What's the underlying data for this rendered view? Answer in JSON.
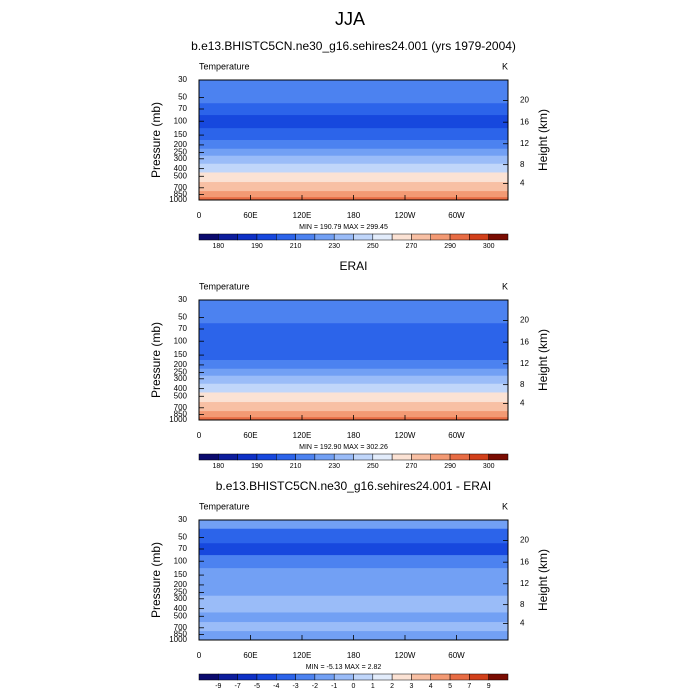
{
  "title": "JJA",
  "chart_data": [
    {
      "type": "contour",
      "title": "b.e13.BHISTC5CN.ne30_g16.sehires24.001 (yrs 1979-2004)",
      "variable": "Temperature",
      "units": "K",
      "ylabel": "Pressure (mb)",
      "y2label": "Height (km)",
      "stats": "MIN = 190.79  MAX = 299.45",
      "xlim": [
        0,
        360
      ],
      "xticks": [
        0,
        {
          "value": 60,
          "label": "60E"
        },
        {
          "value": 120,
          "label": "120E"
        },
        180,
        {
          "value": 240,
          "label": "120W"
        },
        {
          "value": 300,
          "label": "60W"
        }
      ],
      "ylim": [
        1000,
        30
      ],
      "ylog": true,
      "yticks": [
        30,
        50,
        70,
        100,
        150,
        200,
        250,
        300,
        400,
        500,
        700,
        850,
        1000
      ],
      "y2ticks": [
        4,
        8,
        12,
        16,
        20
      ],
      "profile": {
        "pressure": [
          30,
          50,
          70,
          100,
          150,
          200,
          250,
          300,
          400,
          500,
          700,
          850,
          1000
        ],
        "values": [
          218,
          212,
          205,
          198,
          208,
          218,
          226,
          234,
          248,
          260,
          276,
          286,
          293
        ]
      },
      "colorbar": {
        "levels": [
          180,
          185,
          190,
          200,
          210,
          220,
          230,
          240,
          250,
          260,
          270,
          280,
          290,
          295,
          300
        ],
        "label_every": 2,
        "colors": [
          "#0a0a6e",
          "#0c1c9c",
          "#0e30c6",
          "#1748de",
          "#2c64ea",
          "#4c82f0",
          "#72a0f4",
          "#9abcf8",
          "#c0d6fa",
          "#e2ecfb",
          "#fbe2d4",
          "#f8c0a4",
          "#f39a74",
          "#e86c44",
          "#d2401a",
          "#7a0c02"
        ]
      }
    },
    {
      "type": "contour",
      "title": "ERAI",
      "variable": "Temperature",
      "units": "K",
      "ylabel": "Pressure (mb)",
      "y2label": "Height (km)",
      "stats": "MIN = 192.90  MAX = 302.26",
      "xlim": [
        0,
        360
      ],
      "xticks": [
        0,
        {
          "value": 60,
          "label": "60E"
        },
        {
          "value": 120,
          "label": "120E"
        },
        180,
        {
          "value": 240,
          "label": "120W"
        },
        {
          "value": 300,
          "label": "60W"
        }
      ],
      "ylim": [
        1000,
        30
      ],
      "ylog": true,
      "yticks": [
        30,
        50,
        70,
        100,
        150,
        200,
        250,
        300,
        400,
        500,
        700,
        850,
        1000
      ],
      "y2ticks": [
        4,
        8,
        12,
        16,
        20
      ],
      "profile": {
        "pressure": [
          30,
          50,
          70,
          100,
          150,
          200,
          250,
          300,
          400,
          500,
          700,
          850,
          1000
        ],
        "values": [
          219,
          214,
          208,
          201,
          209,
          218,
          226,
          235,
          249,
          261,
          277,
          287,
          294
        ]
      },
      "colorbar": {
        "levels": [
          180,
          185,
          190,
          200,
          210,
          220,
          230,
          240,
          250,
          260,
          270,
          280,
          290,
          295,
          300
        ],
        "label_every": 2,
        "colors": [
          "#0a0a6e",
          "#0c1c9c",
          "#0e30c6",
          "#1748de",
          "#2c64ea",
          "#4c82f0",
          "#72a0f4",
          "#9abcf8",
          "#c0d6fa",
          "#e2ecfb",
          "#fbe2d4",
          "#f8c0a4",
          "#f39a74",
          "#e86c44",
          "#d2401a",
          "#7a0c02"
        ]
      }
    },
    {
      "type": "contour",
      "title": "b.e13.BHISTC5CN.ne30_g16.sehires24.001 - ERAI",
      "variable": "Temperature",
      "units": "K",
      "ylabel": "Pressure (mb)",
      "y2label": "Height (km)",
      "stats": "MIN =  -5.13  MAX =   2.82",
      "xlim": [
        0,
        360
      ],
      "xticks": [
        0,
        {
          "value": 60,
          "label": "60E"
        },
        {
          "value": 120,
          "label": "120E"
        },
        180,
        {
          "value": 240,
          "label": "120W"
        },
        {
          "value": 300,
          "label": "60W"
        }
      ],
      "ylim": [
        1000,
        30
      ],
      "ylog": true,
      "yticks": [
        30,
        50,
        70,
        100,
        150,
        200,
        250,
        300,
        400,
        500,
        700,
        850,
        1000
      ],
      "y2ticks": [
        4,
        8,
        12,
        16,
        20
      ],
      "profile": {
        "pressure": [
          30,
          50,
          70,
          100,
          150,
          200,
          250,
          300,
          400,
          500,
          700,
          850,
          1000
        ],
        "values": [
          -1.5,
          -3.5,
          -4.5,
          -2.5,
          -1.5,
          -1.5,
          -1.2,
          -0.8,
          -0.5,
          -1.2,
          -0.5,
          -1.2,
          -1.2
        ]
      },
      "colorbar": {
        "levels": [
          -9,
          -7,
          -5,
          -4,
          -3,
          -2,
          -1,
          0,
          1,
          2,
          3,
          4,
          5,
          7,
          9
        ],
        "label_every": 1,
        "colors": [
          "#0a0a6e",
          "#0c1c9c",
          "#0e30c6",
          "#1748de",
          "#2c64ea",
          "#4c82f0",
          "#72a0f4",
          "#9abcf8",
          "#c0d6fa",
          "#e2ecfb",
          "#fbe2d4",
          "#f8c0a4",
          "#f39a74",
          "#e86c44",
          "#d2401a",
          "#7a0c02"
        ]
      }
    }
  ]
}
